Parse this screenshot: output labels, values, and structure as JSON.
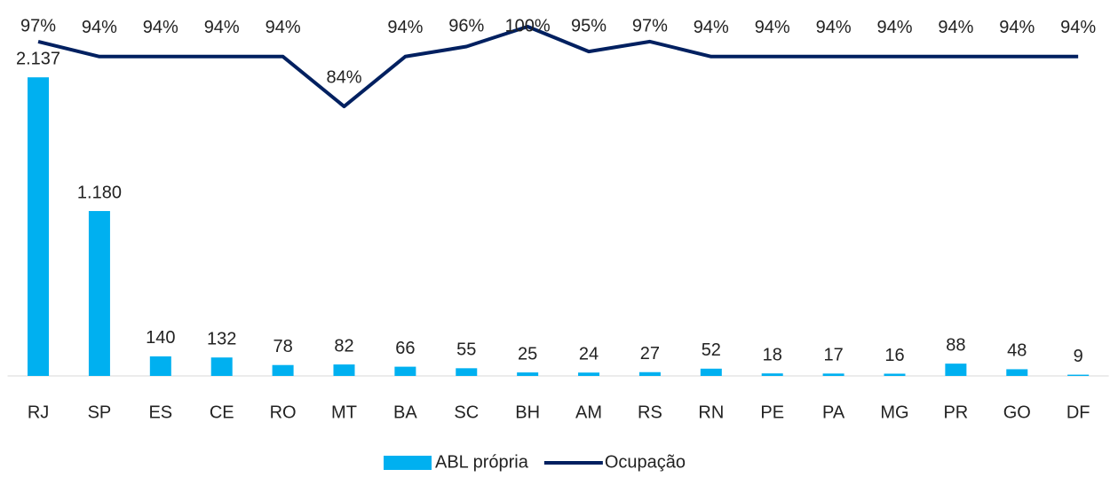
{
  "chart_data": {
    "type": "bar",
    "categories": [
      "RJ",
      "SP",
      "ES",
      "CE",
      "RO",
      "MT",
      "BA",
      "SC",
      "BH",
      "AM",
      "RS",
      "RN",
      "PE",
      "PA",
      "MG",
      "PR",
      "GO",
      "DF"
    ],
    "series": [
      {
        "name": "ABL própria",
        "type": "bar",
        "color": "#00b0f0",
        "values": [
          2137,
          1180,
          140,
          132,
          78,
          82,
          66,
          55,
          25,
          24,
          27,
          52,
          18,
          17,
          16,
          88,
          48,
          9
        ],
        "value_labels": [
          "2.137",
          "1.180",
          "140",
          "132",
          "78",
          "82",
          "66",
          "55",
          "25",
          "24",
          "27",
          "52",
          "18",
          "17",
          "16",
          "88",
          "48",
          "9"
        ]
      },
      {
        "name": "Ocupação",
        "type": "line",
        "axis": "y2",
        "color": "#002060",
        "values": [
          97,
          94,
          94,
          94,
          94,
          84,
          94,
          96,
          100,
          95,
          97,
          94,
          94,
          94,
          94,
          94,
          94,
          94
        ],
        "value_labels": [
          "97%",
          "94%",
          "94%",
          "94%",
          "94%",
          "84%",
          "94%",
          "96%",
          "100%",
          "95%",
          "97%",
          "94%",
          "94%",
          "94%",
          "94%",
          "94%",
          "94%",
          "94%"
        ]
      }
    ],
    "ylim": [
      0,
      2500
    ],
    "y2lim": [
      30,
      100
    ],
    "legend": "bottom"
  }
}
